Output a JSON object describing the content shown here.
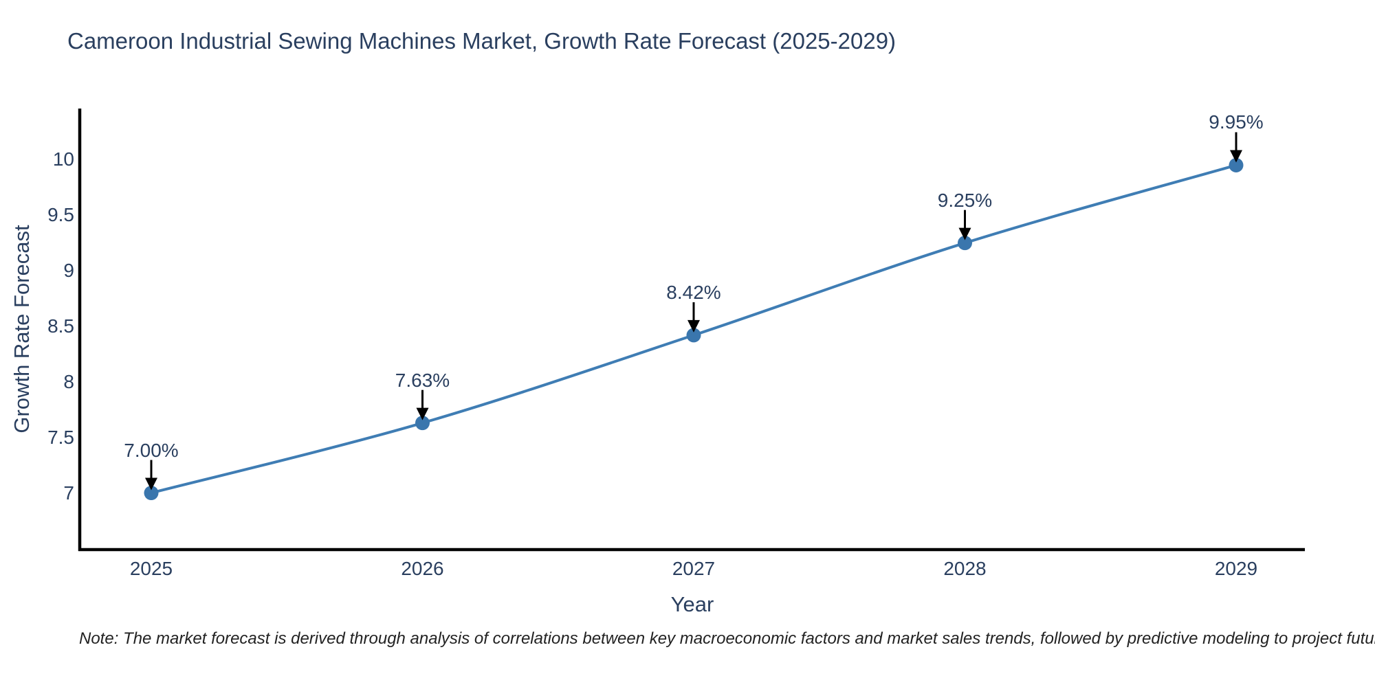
{
  "chart_data": {
    "type": "line",
    "title": "Cameroon Industrial Sewing Machines Market, Growth Rate Forecast (2025-2029)",
    "xlabel": "Year",
    "ylabel": "Growth Rate Forecast",
    "categories": [
      "2025",
      "2026",
      "2027",
      "2028",
      "2029"
    ],
    "values": [
      7.0,
      7.63,
      8.42,
      9.25,
      9.95
    ],
    "point_labels": [
      "7.00%",
      "7.63%",
      "8.42%",
      "9.25%",
      "9.95%"
    ],
    "ytick_labels": [
      "7",
      "7.5",
      "8",
      "8.5",
      "9",
      "9.5",
      "10"
    ],
    "ytick_values": [
      7,
      7.5,
      8,
      8.5,
      9,
      9.5,
      10
    ],
    "ylim": [
      6.49,
      10.46
    ],
    "grid": false,
    "legend_position": "none",
    "line_shape": "spline",
    "marker": "circle",
    "annotation_arrows": true,
    "colors": {
      "line": "#3f7db4",
      "marker": "#3a76ad",
      "arrow": "#000000",
      "axis_line": "#000000",
      "chart_text": "#2a3f5f",
      "note_text": "#222222",
      "background": "#ffffff"
    }
  },
  "footnote": "Note: The market forecast is derived through analysis of correlations between key macroeconomic factors and market sales trends, followed by predictive modeling to project future sales trends."
}
